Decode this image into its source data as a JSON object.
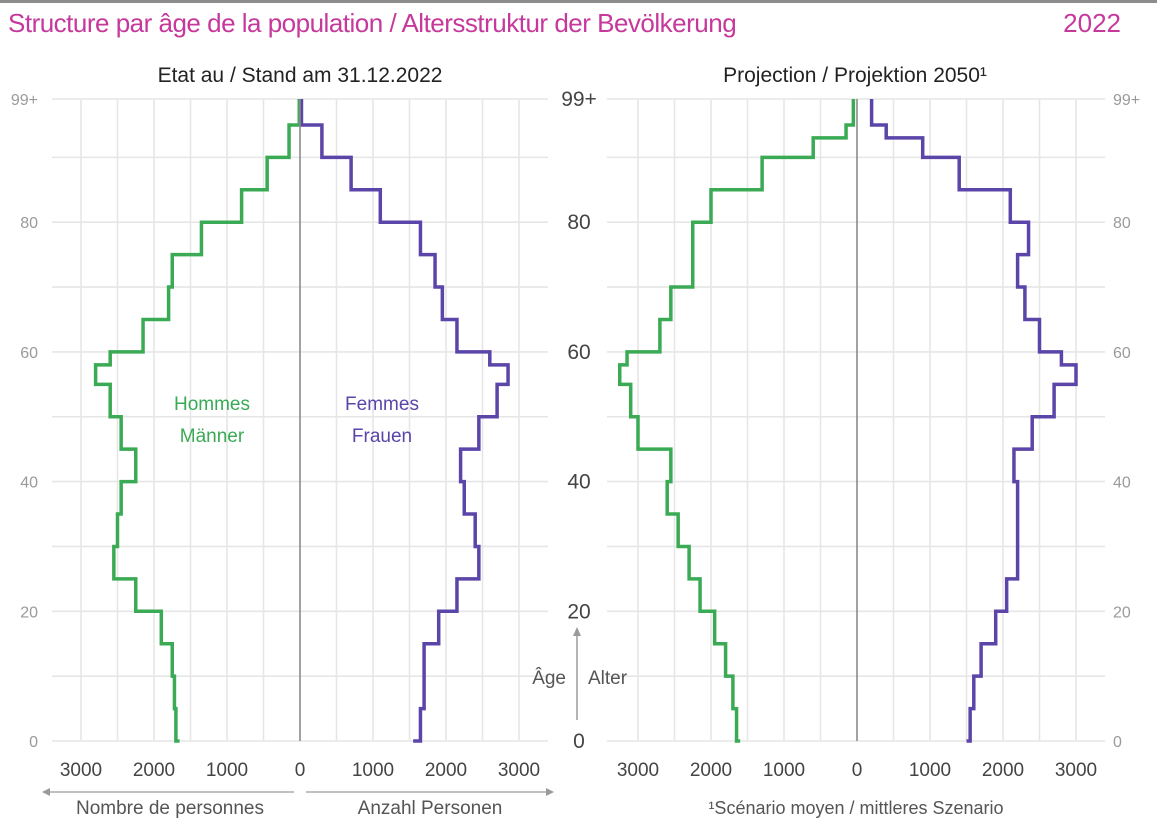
{
  "header": {
    "title": "Structure par âge de la population / Altersstruktur der Bevölkerung",
    "year": "2022"
  },
  "colors": {
    "men": "#3aaa55",
    "women": "#5b45a8",
    "title": "#c6389c",
    "grid": "#e6e6e6",
    "axis": "#8a8a8a",
    "text": "#444444"
  },
  "panels": {
    "left": {
      "subtitle": "Etat au / Stand am 31.12.2022"
    },
    "right": {
      "subtitle": "Projection / Projektion 2050¹"
    }
  },
  "labels": {
    "men_fr": "Hommes",
    "men_de": "Männer",
    "women_fr": "Femmes",
    "women_de": "Frauen",
    "age_fr": "Âge",
    "age_de": "Alter",
    "count_fr": "Nombre de personnes",
    "count_de": "Anzahl Personen",
    "footnote": "¹Scénario moyen / mittleres Szenario"
  },
  "axes": {
    "age_ticks": [
      "0",
      "20",
      "40",
      "60",
      "80",
      "99+"
    ],
    "count_ticks": [
      "3000",
      "2000",
      "1000",
      "0",
      "1000",
      "2000",
      "3000"
    ]
  },
  "chart_data": [
    {
      "type": "line",
      "title": "Etat au / Stand am 31.12.2022",
      "xlabel": "Nombre de personnes / Anzahl Personen",
      "ylabel": "Âge / Alter",
      "x": [
        0,
        5,
        10,
        15,
        20,
        25,
        30,
        35,
        40,
        45,
        50,
        55,
        58,
        60,
        65,
        70,
        75,
        80,
        85,
        90,
        95,
        99
      ],
      "series": [
        {
          "name": "Hommes / Männer",
          "values": [
            1650,
            1700,
            1720,
            1750,
            1900,
            2250,
            2550,
            2500,
            2450,
            2250,
            2450,
            2600,
            2800,
            2600,
            2150,
            1800,
            1750,
            1350,
            800,
            450,
            150,
            10
          ]
        },
        {
          "name": "Femmes / Frauen",
          "values": [
            1550,
            1650,
            1700,
            1700,
            1900,
            2150,
            2450,
            2400,
            2250,
            2200,
            2450,
            2700,
            2850,
            2600,
            2150,
            1950,
            1850,
            1650,
            1100,
            700,
            300,
            20
          ]
        }
      ],
      "xlim": [
        -3500,
        3500
      ],
      "ylim": [
        0,
        99
      ],
      "grid": true
    },
    {
      "type": "line",
      "title": "Projection / Projektion 2050¹",
      "xlabel": "",
      "ylabel": "Âge / Alter",
      "x": [
        0,
        5,
        10,
        15,
        20,
        25,
        30,
        35,
        40,
        45,
        50,
        55,
        58,
        60,
        65,
        70,
        75,
        80,
        85,
        90,
        93,
        95,
        99
      ],
      "series": [
        {
          "name": "Hommes / Männer",
          "values": [
            1600,
            1650,
            1700,
            1800,
            1950,
            2150,
            2300,
            2450,
            2600,
            2550,
            3000,
            3100,
            3250,
            3150,
            2700,
            2550,
            2250,
            2250,
            2000,
            1300,
            600,
            150,
            50
          ]
        },
        {
          "name": "Femmes / Frauen",
          "values": [
            1500,
            1550,
            1600,
            1700,
            1900,
            2050,
            2200,
            2200,
            2200,
            2150,
            2400,
            2700,
            3000,
            2800,
            2500,
            2300,
            2200,
            2350,
            2100,
            1400,
            900,
            400,
            200
          ]
        }
      ],
      "xlim": [
        -3500,
        3500
      ],
      "ylim": [
        0,
        99
      ],
      "grid": true
    }
  ]
}
